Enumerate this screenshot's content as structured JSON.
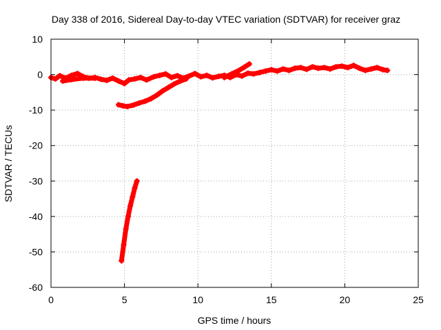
{
  "chart_data": {
    "type": "scatter",
    "title": "Day 338 of 2016, Sidereal Day-to-day VTEC variation (SDTVAR) for receiver graz",
    "xlabel": "GPS time / hours",
    "ylabel": "SDTVAR / TECUs",
    "xlim": [
      0,
      25
    ],
    "ylim": [
      -60,
      10
    ],
    "xticks": [
      0,
      5,
      10,
      15,
      20,
      25
    ],
    "yticks": [
      10,
      0,
      -10,
      -20,
      -30,
      -40,
      -50,
      -60
    ],
    "grid": true,
    "series_color": "#ff0000",
    "series": [
      {
        "name": "main",
        "values": [
          [
            0,
            -0.8
          ],
          [
            0.3,
            -1.2
          ],
          [
            0.6,
            -0.3
          ],
          [
            1.0,
            -1.0
          ],
          [
            1.4,
            -0.2
          ],
          [
            1.8,
            0.3
          ],
          [
            2.2,
            -0.6
          ],
          [
            2.6,
            -1.0
          ],
          [
            3.0,
            -0.8
          ],
          [
            3.4,
            -1.3
          ],
          [
            3.8,
            -1.6
          ],
          [
            4.2,
            -1.0
          ],
          [
            4.6,
            -1.8
          ],
          [
            5.0,
            -2.5
          ],
          [
            5.3,
            -1.5
          ],
          [
            5.7,
            -1.2
          ],
          [
            6.1,
            -0.8
          ],
          [
            6.5,
            -1.5
          ],
          [
            7.0,
            -0.6
          ],
          [
            7.4,
            -0.2
          ],
          [
            7.8,
            0.2
          ],
          [
            8.2,
            -0.8
          ],
          [
            8.6,
            -0.3
          ],
          [
            9.0,
            -1.0
          ],
          [
            9.4,
            -0.4
          ],
          [
            9.8,
            0.3
          ],
          [
            10.2,
            -0.6
          ],
          [
            10.6,
            -0.2
          ],
          [
            11.0,
            -0.9
          ],
          [
            11.4,
            -0.5
          ],
          [
            11.8,
            -0.2
          ],
          [
            12.2,
            -0.8
          ],
          [
            12.6,
            0.0
          ],
          [
            13.0,
            -0.4
          ],
          [
            13.4,
            0.4
          ],
          [
            13.8,
            0.2
          ],
          [
            14.2,
            0.6
          ],
          [
            14.6,
            1.0
          ],
          [
            15.0,
            1.4
          ],
          [
            15.4,
            1.0
          ],
          [
            15.8,
            1.6
          ],
          [
            16.2,
            1.2
          ],
          [
            16.6,
            1.8
          ],
          [
            17.0,
            2.0
          ],
          [
            17.4,
            1.5
          ],
          [
            17.8,
            2.2
          ],
          [
            18.2,
            1.8
          ],
          [
            18.6,
            2.0
          ],
          [
            19.0,
            1.6
          ],
          [
            19.4,
            2.2
          ],
          [
            19.8,
            2.4
          ],
          [
            20.2,
            2.0
          ],
          [
            20.6,
            2.6
          ],
          [
            21.0,
            1.8
          ],
          [
            21.4,
            1.2
          ],
          [
            21.8,
            1.6
          ],
          [
            22.2,
            2.0
          ],
          [
            22.6,
            1.4
          ],
          [
            22.9,
            1.2
          ]
        ]
      },
      {
        "name": "branch-low",
        "values": [
          [
            4.6,
            -8.5
          ],
          [
            4.9,
            -8.8
          ],
          [
            5.2,
            -9.0
          ],
          [
            5.6,
            -8.6
          ],
          [
            6.0,
            -8.0
          ],
          [
            6.4,
            -7.5
          ],
          [
            6.8,
            -6.8
          ],
          [
            7.2,
            -5.8
          ],
          [
            7.6,
            -4.6
          ],
          [
            8.0,
            -3.6
          ],
          [
            8.4,
            -2.6
          ],
          [
            8.8,
            -1.8
          ],
          [
            9.2,
            -1.2
          ]
        ]
      },
      {
        "name": "branch-mid",
        "values": [
          [
            0.8,
            -1.8
          ],
          [
            1.4,
            -1.4
          ],
          [
            2.2,
            -1.0
          ],
          [
            3.0,
            -1.0
          ]
        ]
      },
      {
        "name": "branch-up",
        "values": [
          [
            11.8,
            -0.8
          ],
          [
            12.3,
            0.2
          ],
          [
            12.8,
            1.2
          ],
          [
            13.2,
            2.2
          ],
          [
            13.5,
            3.0
          ]
        ]
      },
      {
        "name": "steep",
        "values": [
          [
            4.8,
            -52.5
          ],
          [
            4.95,
            -48.0
          ],
          [
            5.1,
            -43.5
          ],
          [
            5.25,
            -40.0
          ],
          [
            5.4,
            -37.0
          ],
          [
            5.55,
            -34.5
          ],
          [
            5.7,
            -32.0
          ],
          [
            5.85,
            -30.0
          ]
        ]
      }
    ]
  }
}
